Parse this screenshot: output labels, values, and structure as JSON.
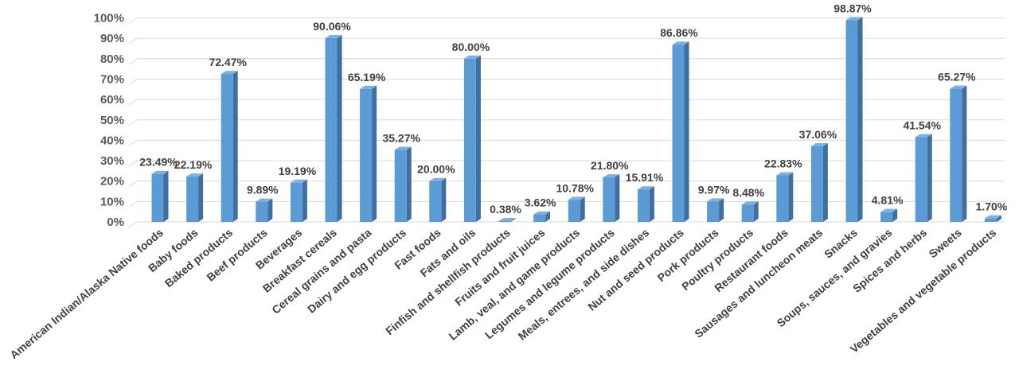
{
  "chart_data": {
    "type": "bar",
    "style": "3d-column",
    "grid": true,
    "legend": "none",
    "title": "",
    "xlabel": "",
    "ylabel": "",
    "ylim": [
      0,
      100
    ],
    "y_ticks": [
      "0%",
      "10%",
      "20%",
      "30%",
      "40%",
      "50%",
      "60%",
      "70%",
      "80%",
      "90%",
      "100%"
    ],
    "colors": {
      "bar_front": "#5b9bd5",
      "bar_side": "#3f6f9f",
      "bar_top": "#7eb0e0",
      "grid": "#d9d9d9",
      "tick_text": "#595959",
      "label_text": "#404040"
    },
    "categories": [
      "American Indian/Alaska Native foods",
      "Baby foods",
      "Baked products",
      "Beef products",
      "Beverages",
      "Breakfast cereals",
      "Cereal grains and pasta",
      "Dairy and egg products",
      "Fast foods",
      "Fats and oils",
      "Finfish and shellfish products",
      "Fruits and fruit juices",
      "Lamb, veal, and game products",
      "Legumes and legume products",
      "Meals, entrees, and side dishes",
      "Nut and seed products",
      "Pork products",
      "Poultry products",
      "Restaurant foods",
      "Sausages and luncheon meats",
      "Snacks",
      "Soups, sauces, and gravies",
      "Spices and herbs",
      "Sweets",
      "Vegetables and vegetable products"
    ],
    "values": [
      23.49,
      22.19,
      72.47,
      9.89,
      19.19,
      90.06,
      65.19,
      35.27,
      20.0,
      80.0,
      0.38,
      3.62,
      10.78,
      21.8,
      15.91,
      86.86,
      9.97,
      8.48,
      22.83,
      37.06,
      98.87,
      4.81,
      41.54,
      65.27,
      1.7
    ],
    "data_labels": [
      "23.49%",
      "22.19%",
      "72.47%",
      "9.89%",
      "19.19%",
      "90.06%",
      "65.19%",
      "35.27%",
      "20.00%",
      "80.00%",
      "0.38%",
      "3.62%",
      "10.78%",
      "21.80%",
      "15.91%",
      "86.86%",
      "9.97%",
      "8.48%",
      "22.83%",
      "37.06%",
      "98.87%",
      "4.81%",
      "41.54%",
      "65.27%",
      "1.70%"
    ]
  }
}
